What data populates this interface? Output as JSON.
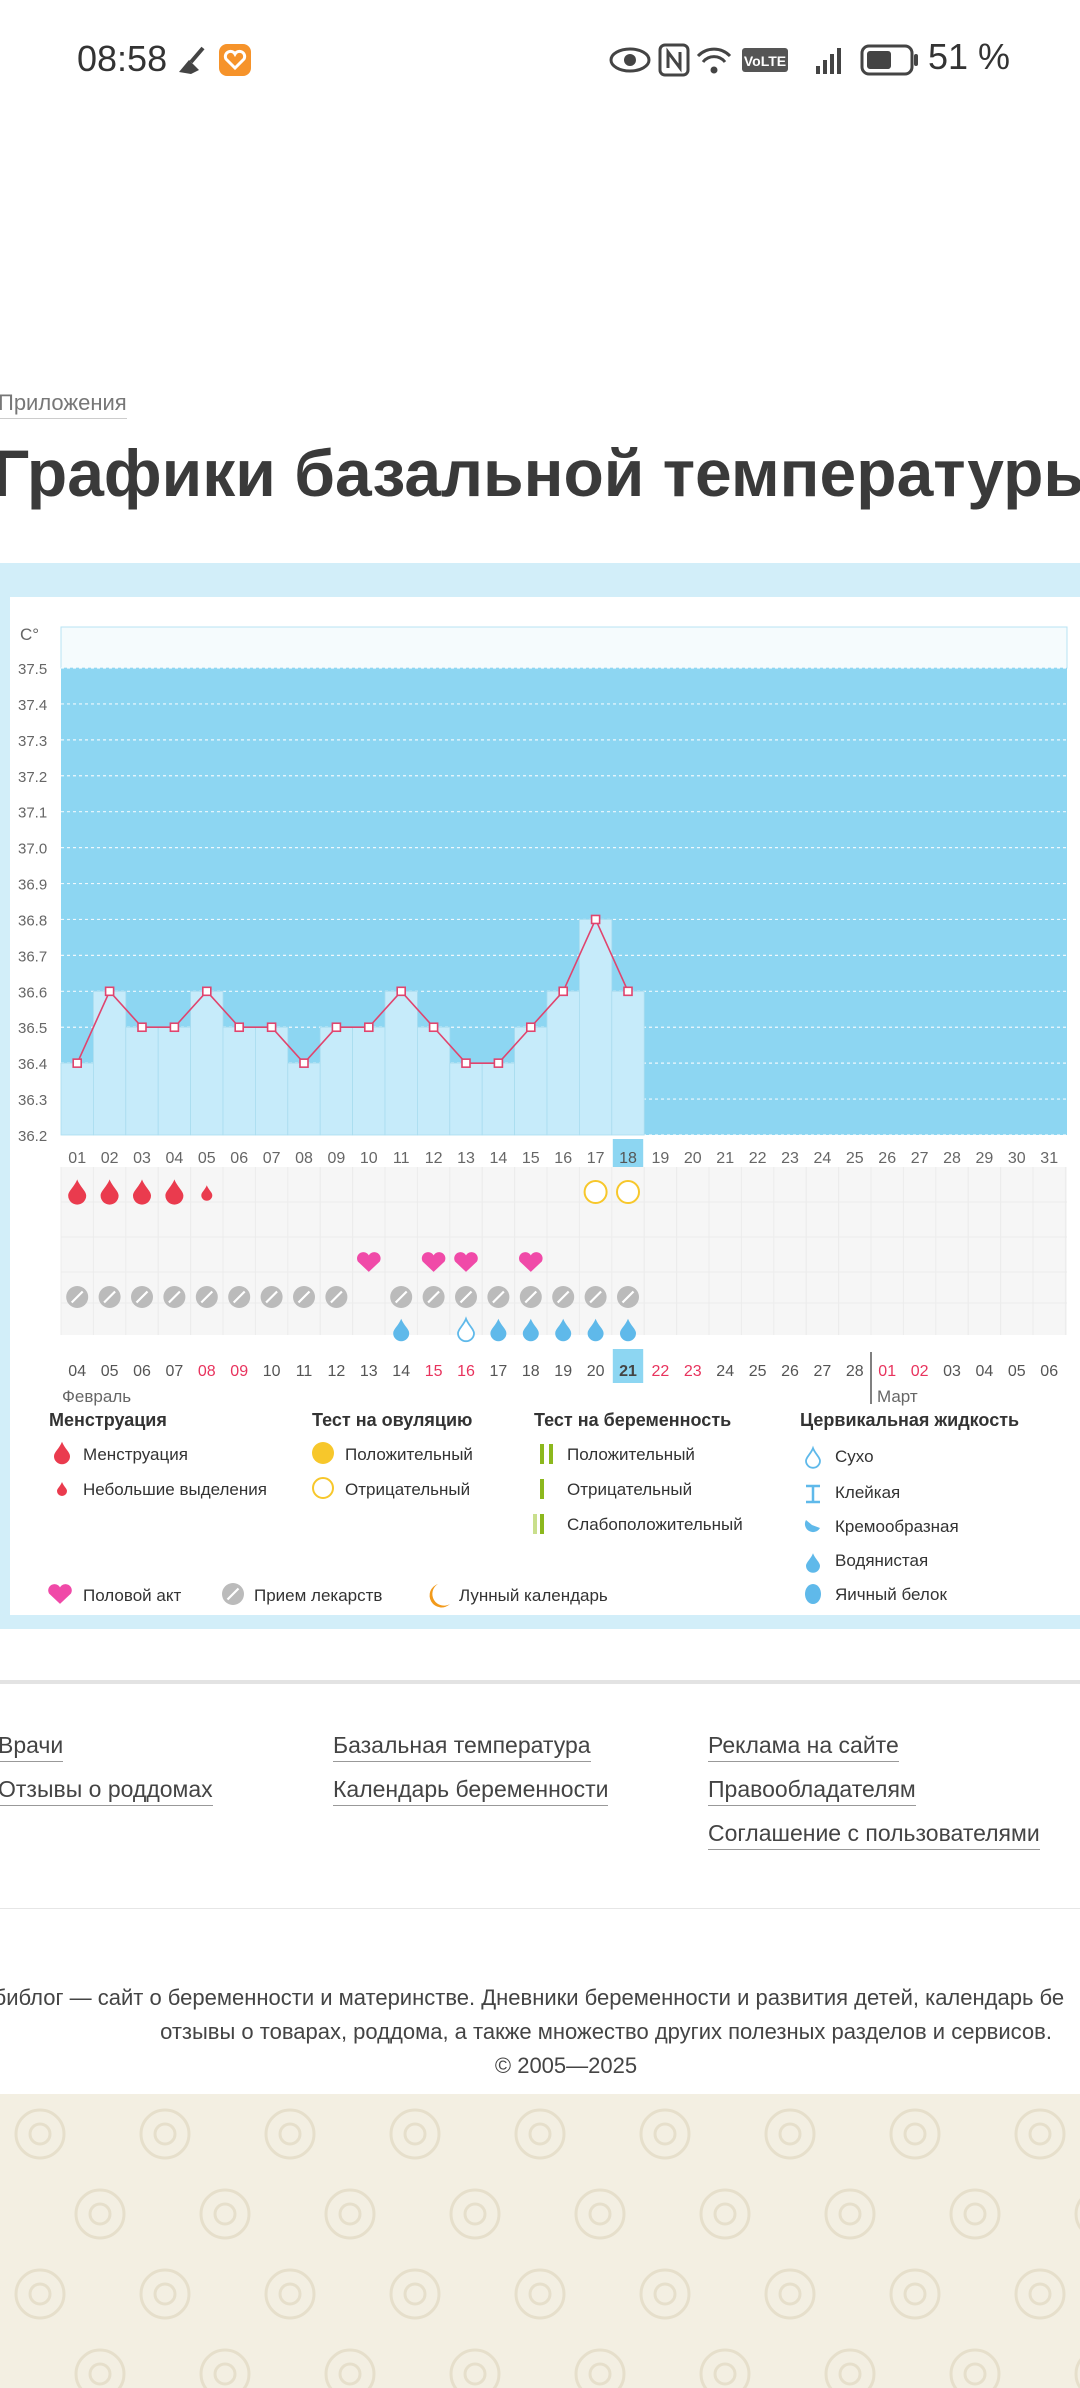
{
  "status": {
    "time": "08:58",
    "battery": "51 %"
  },
  "breadcrumb": "Приложения",
  "title": "Графики базальной температуры",
  "chart_data": {
    "type": "area",
    "title": "Графики базальной температуры",
    "unit_label": "C°",
    "y_ticks": [
      "37.5",
      "37.4",
      "37.3",
      "37.2",
      "37.1",
      "37.0",
      "36.9",
      "36.8",
      "36.7",
      "36.6",
      "36.5",
      "36.4",
      "36.3",
      "36.2"
    ],
    "ylim": [
      36.2,
      37.5
    ],
    "cycle_days": [
      "01",
      "02",
      "03",
      "04",
      "05",
      "06",
      "07",
      "08",
      "09",
      "10",
      "11",
      "12",
      "13",
      "14",
      "15",
      "16",
      "17",
      "18",
      "19",
      "20",
      "21",
      "22",
      "23",
      "24",
      "25",
      "26",
      "27",
      "28",
      "29",
      "30",
      "31"
    ],
    "temperatures": [
      36.4,
      36.6,
      36.5,
      36.5,
      36.6,
      36.5,
      36.5,
      36.4,
      36.5,
      36.5,
      36.6,
      36.5,
      36.4,
      36.4,
      36.5,
      36.6,
      36.8,
      36.6
    ],
    "current_day_index": 17,
    "menstruation": [
      "big",
      "big",
      "big",
      "big",
      "small",
      null,
      null,
      null,
      null,
      null,
      null,
      null,
      null,
      null,
      null,
      null,
      null,
      null
    ],
    "ovulation_test": [
      null,
      null,
      null,
      null,
      null,
      null,
      null,
      null,
      null,
      null,
      null,
      null,
      null,
      null,
      null,
      null,
      "negative",
      "negative"
    ],
    "intercourse": [
      false,
      false,
      false,
      false,
      false,
      false,
      false,
      false,
      false,
      true,
      false,
      true,
      true,
      false,
      true,
      false,
      false,
      false
    ],
    "medication": [
      true,
      true,
      true,
      true,
      true,
      true,
      true,
      true,
      true,
      false,
      true,
      true,
      true,
      true,
      true,
      true,
      true,
      true
    ],
    "cervical": [
      null,
      null,
      null,
      null,
      null,
      null,
      null,
      null,
      null,
      null,
      "watery",
      null,
      "dry",
      "watery",
      "watery",
      "watery",
      "watery",
      "watery"
    ],
    "dates": [
      "04",
      "05",
      "06",
      "07",
      "08",
      "09",
      "10",
      "11",
      "12",
      "13",
      "14",
      "15",
      "16",
      "17",
      "18",
      "19",
      "20",
      "21",
      "22",
      "23",
      "24",
      "25",
      "26",
      "27",
      "28",
      "01",
      "02",
      "03",
      "04",
      "05",
      "06"
    ],
    "weekend_date_indices": [
      4,
      5,
      11,
      12,
      18,
      19,
      25,
      26
    ],
    "current_date_index": 17,
    "month_start": "Февраль",
    "month_next": "Март",
    "month_split_index": 25
  },
  "legend": {
    "menstruation": {
      "title": "Менструация",
      "items": [
        "Менструация",
        "Небольшие выделения"
      ]
    },
    "ovulation": {
      "title": "Тест на овуляцию",
      "items": [
        "Положительный",
        "Отрицательный"
      ]
    },
    "pregnancy": {
      "title": "Тест на беременность",
      "items": [
        "Положительный",
        "Отрицательный",
        "Слабоположительный"
      ]
    },
    "cervical": {
      "title": "Цервикальная жидкость",
      "items": [
        "Сухо",
        "Клейкая",
        "Кремообразная",
        "Водянистая",
        "Яичный белок"
      ]
    },
    "bottom": [
      "Половой акт",
      "Прием лекарств",
      "Лунный календарь"
    ]
  },
  "footer": {
    "col1": [
      "Врачи",
      "Отзывы о роддомах"
    ],
    "col2": [
      "Базальная температура",
      "Календарь беременности"
    ],
    "col3": [
      "Реклама на сайте",
      "Правообладателям",
      "Соглашение с пользователями"
    ],
    "about_line1": "Бэбиблог — сайт о беременности и материнстве. Дневники беременности и развития детей, календарь бе",
    "about_line2": "отзывы о товарах, роддома, а также множество других полезных разделов и сервисов.",
    "copyright": "© 2005—2025"
  },
  "colors": {
    "chart_bg": "#8dd6f2",
    "bar": "#c6ebfa",
    "line": "#e0446e",
    "frame": "#d2eef9",
    "weekend": "#e8335d",
    "med": "#bbbbbb",
    "heart": "#f04aa8",
    "drop": "#ea3b4e",
    "water": "#5fb9ea",
    "yellow": "#f7c72b",
    "green": "#8cb81d",
    "moon": "#f29a1b"
  }
}
